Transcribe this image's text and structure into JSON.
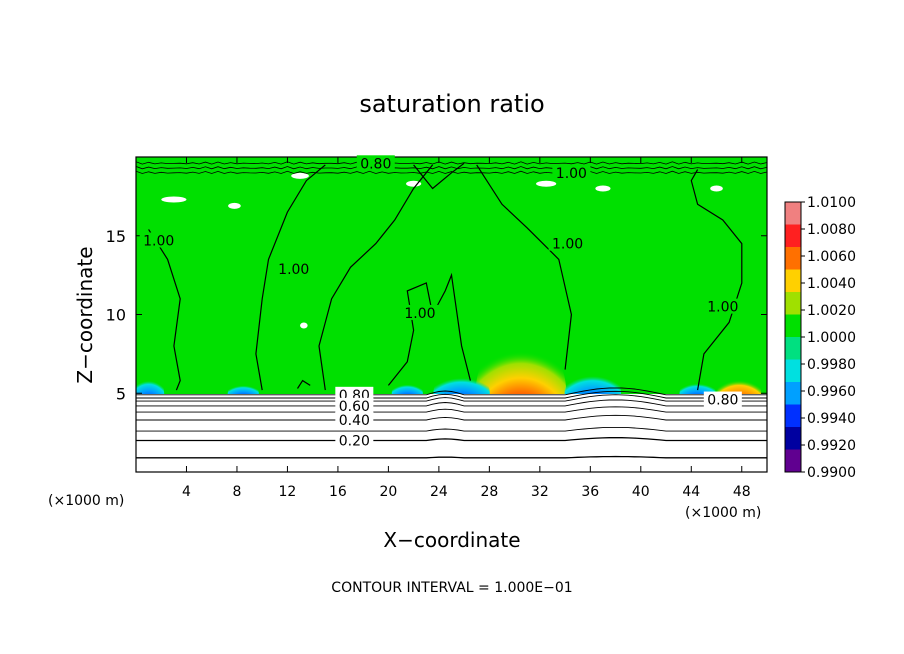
{
  "chart_data": {
    "type": "heatmap",
    "title": "saturation ratio",
    "xlabel": "X−coordinate",
    "ylabel": "Z−coordinate",
    "x_unit_left": "(×1000 m)",
    "x_unit_right": "(×1000 m)",
    "xlim": [
      0,
      50
    ],
    "ylim": [
      0,
      20
    ],
    "x_ticks": [
      4,
      8,
      12,
      16,
      20,
      24,
      28,
      32,
      36,
      40,
      44,
      48
    ],
    "y_ticks": [
      5,
      10,
      15
    ],
    "footer": "CONTOUR INTERVAL = 1.000E−01",
    "colorbar": {
      "levels": [
        "1.0100",
        "1.0080",
        "1.0060",
        "1.0040",
        "1.0020",
        "1.0000",
        "0.9980",
        "0.9960",
        "0.9940",
        "0.9920",
        "0.9900"
      ],
      "colors": [
        "#f08080",
        "#ff2020",
        "#ff7000",
        "#ffd000",
        "#a0e000",
        "#00e000",
        "#00e080",
        "#00e0e0",
        "#00a0ff",
        "#0030ff",
        "#0000a0",
        "#600090"
      ]
    },
    "dry_layer_top_z": 5,
    "contour_labels": [
      {
        "text": "0.80",
        "x": 19,
        "z": 19.6
      },
      {
        "text": "1.00",
        "x": 34.5,
        "z": 19.0
      },
      {
        "text": "1.00",
        "x": 1.8,
        "z": 14.7
      },
      {
        "text": "1.00",
        "x": 12.5,
        "z": 12.9
      },
      {
        "text": "1.00",
        "x": 22.5,
        "z": 10.1
      },
      {
        "text": "1.00",
        "x": 34.2,
        "z": 14.5
      },
      {
        "text": "1.00",
        "x": 46.5,
        "z": 10.5
      },
      {
        "text": "0.80",
        "x": 17.3,
        "z": 4.9
      },
      {
        "text": "0.60",
        "x": 17.3,
        "z": 4.2
      },
      {
        "text": "0.40",
        "x": 17.3,
        "z": 3.3
      },
      {
        "text": "0.20",
        "x": 17.3,
        "z": 2.0
      },
      {
        "text": "0.80",
        "x": 46.5,
        "z": 4.6
      }
    ],
    "dry_contours_z": [
      0.9,
      2.0,
      2.6,
      3.3,
      3.8,
      4.2,
      4.5,
      4.7,
      4.9
    ],
    "upper_contours": [
      [
        [
          1.0,
          15.4
        ],
        [
          2.5,
          13.5
        ],
        [
          3.5,
          11.0
        ],
        [
          3.0,
          8.0
        ],
        [
          3.5,
          5.8
        ],
        [
          3.2,
          5.2
        ]
      ],
      [
        [
          10.0,
          5.2
        ],
        [
          9.5,
          7.5
        ],
        [
          10.0,
          11.0
        ],
        [
          10.5,
          13.5
        ],
        [
          12.0,
          16.5
        ],
        [
          13.5,
          18.5
        ],
        [
          15.0,
          19.5
        ]
      ],
      [
        [
          15.0,
          5.2
        ],
        [
          14.5,
          8.0
        ],
        [
          15.5,
          11.0
        ],
        [
          17.0,
          13.0
        ],
        [
          19.0,
          14.5
        ],
        [
          20.5,
          16.0
        ],
        [
          22.0,
          18.0
        ],
        [
          23.5,
          19.5
        ]
      ],
      [
        [
          20.0,
          5.5
        ],
        [
          21.5,
          7.0
        ],
        [
          22.0,
          9.0
        ],
        [
          21.5,
          11.5
        ],
        [
          23.0,
          12.0
        ],
        [
          23.5,
          10.0
        ],
        [
          24.5,
          11.5
        ],
        [
          25.0,
          12.5
        ],
        [
          25.8,
          8.0
        ],
        [
          26.5,
          5.8
        ]
      ],
      [
        [
          27.0,
          19.5
        ],
        [
          29.0,
          17.0
        ],
        [
          31.0,
          15.5
        ],
        [
          33.5,
          13.5
        ],
        [
          34.5,
          10.0
        ],
        [
          34.0,
          6.5
        ]
      ],
      [
        [
          44.5,
          5.2
        ],
        [
          45.0,
          7.5
        ],
        [
          47.0,
          9.5
        ],
        [
          48.0,
          12.0
        ],
        [
          48.0,
          14.5
        ],
        [
          46.5,
          16.0
        ],
        [
          44.5,
          17.0
        ],
        [
          44.0,
          18.5
        ],
        [
          44.5,
          19.2
        ]
      ],
      [
        [
          22.0,
          19.5
        ],
        [
          23.5,
          18.0
        ],
        [
          25.0,
          19.0
        ],
        [
          26.0,
          19.6
        ]
      ],
      [
        [
          12.8,
          5.3
        ],
        [
          13.2,
          5.8
        ],
        [
          13.8,
          5.5
        ]
      ]
    ]
  }
}
